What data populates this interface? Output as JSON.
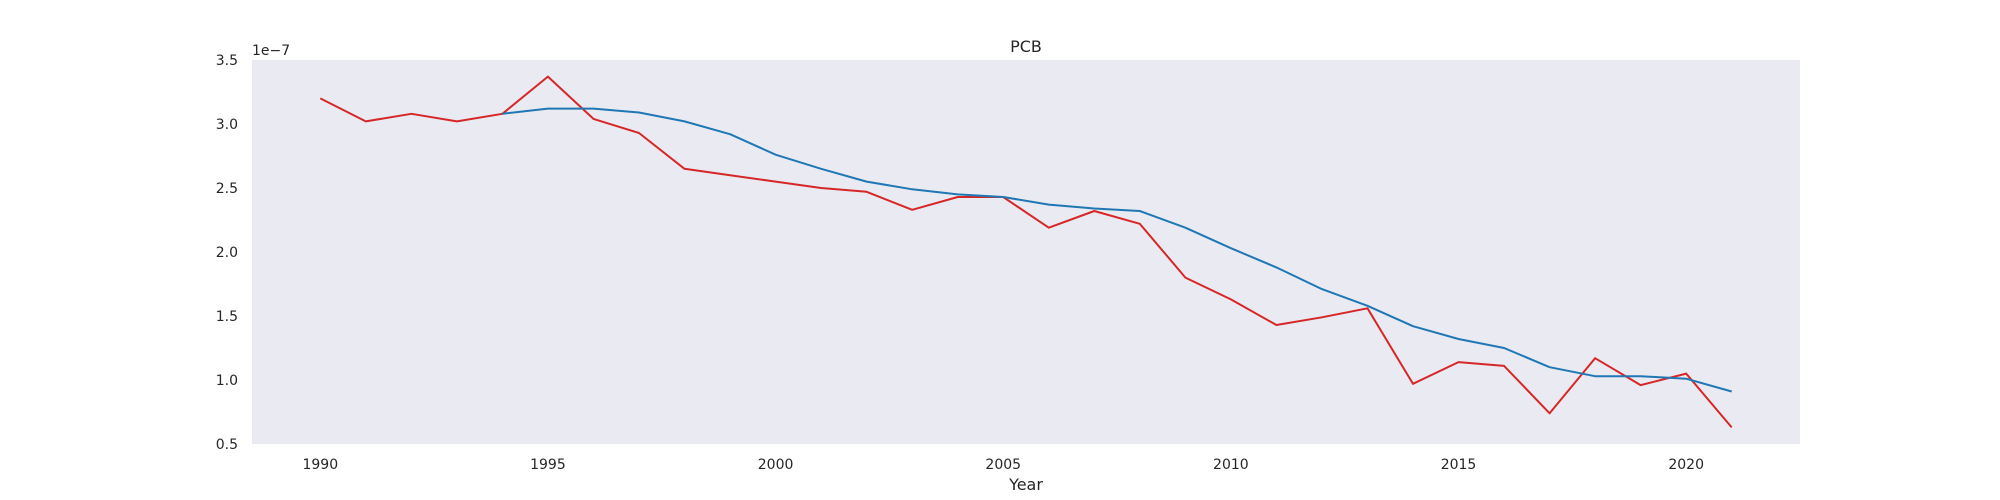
{
  "chart_data": {
    "type": "line",
    "title": "PCB",
    "xlabel": "Year",
    "ylabel": "",
    "y_scale_label": "1e−7",
    "xlim": [
      1988.5,
      2022.5
    ],
    "ylim": [
      0.5,
      3.5
    ],
    "x_ticks": [
      1990,
      1995,
      2000,
      2005,
      2010,
      2015,
      2020
    ],
    "y_ticks": [
      0.5,
      1.0,
      1.5,
      2.0,
      2.5,
      3.0,
      3.5
    ],
    "y_tick_labels": [
      "0.5",
      "1.0",
      "1.5",
      "2.0",
      "2.5",
      "3.0",
      "3.5"
    ],
    "grid": false,
    "background": "#eaeaf2",
    "series": [
      {
        "color": "#d62728",
        "x": [
          1990,
          1991,
          1992,
          1993,
          1994,
          1995,
          1996,
          1997,
          1998,
          1999,
          2000,
          2001,
          2002,
          2003,
          2004,
          2005,
          2006,
          2007,
          2008,
          2009,
          2010,
          2011,
          2012,
          2013,
          2014,
          2015,
          2016,
          2017,
          2018,
          2019,
          2020,
          2021
        ],
        "values": [
          3.2,
          3.02,
          3.08,
          3.02,
          3.08,
          3.37,
          3.04,
          2.93,
          2.65,
          2.6,
          2.55,
          2.5,
          2.47,
          2.33,
          2.43,
          2.43,
          2.19,
          2.32,
          2.22,
          1.8,
          1.63,
          1.43,
          1.49,
          1.56,
          0.97,
          1.14,
          1.11,
          0.74,
          1.17,
          0.96,
          1.05,
          0.63
        ]
      },
      {
        "color": "#1f77b4",
        "x": [
          1994,
          1995,
          1996,
          1997,
          1998,
          1999,
          2000,
          2001,
          2002,
          2003,
          2004,
          2005,
          2006,
          2007,
          2008,
          2009,
          2010,
          2011,
          2012,
          2013,
          2014,
          2015,
          2016,
          2017,
          2018,
          2019,
          2020,
          2021
        ],
        "values": [
          3.08,
          3.12,
          3.12,
          3.09,
          3.02,
          2.92,
          2.76,
          2.65,
          2.55,
          2.49,
          2.45,
          2.43,
          2.37,
          2.34,
          2.32,
          2.19,
          2.03,
          1.88,
          1.71,
          1.58,
          1.42,
          1.32,
          1.25,
          1.1,
          1.03,
          1.03,
          1.01,
          0.91
        ]
      }
    ]
  }
}
